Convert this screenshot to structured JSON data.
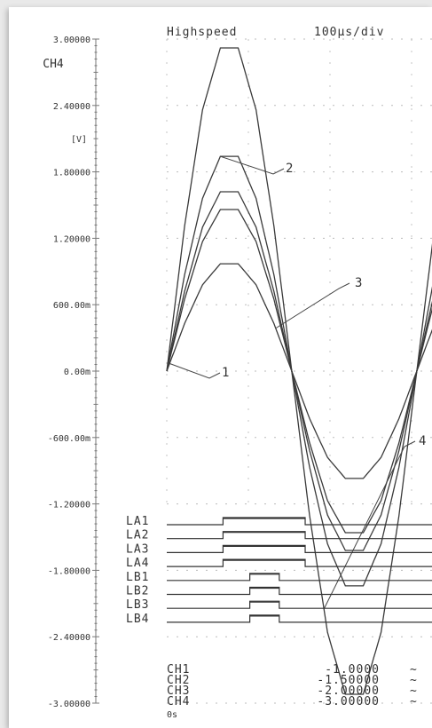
{
  "chart_data": {
    "type": "line",
    "title": "Highspeed",
    "timebase": "100μs/div",
    "ylabel": "CH4",
    "yunit": "[V]",
    "ylim": [
      -3.0,
      3.0
    ],
    "y_ticks": [
      {
        "value": 3.0,
        "label": "3.00000"
      },
      {
        "value": 2.4,
        "label": "2.40000"
      },
      {
        "value": 1.8,
        "label": "1.80000"
      },
      {
        "value": 1.2,
        "label": "1.20000"
      },
      {
        "value": 0.6,
        "label": "600.00m"
      },
      {
        "value": 0.0,
        "label": "0.00m"
      },
      {
        "value": -0.6,
        "label": "-600.00m"
      },
      {
        "value": -1.2,
        "label": "-1.20000"
      },
      {
        "value": -1.8,
        "label": "-1.80000"
      },
      {
        "value": -2.4,
        "label": "-2.40000"
      },
      {
        "value": -3.0,
        "label": "-3.00000"
      }
    ],
    "x_unit": "μs",
    "xlim": [
      0,
      300
    ],
    "x_start_label": "0s",
    "series": [
      {
        "tag": "1",
        "values": [
          [
            0,
            0
          ],
          [
            20,
            0.72
          ],
          [
            40,
            1.3
          ],
          [
            60,
            1.62
          ],
          [
            80,
            1.62
          ],
          [
            100,
            1.3
          ],
          [
            120,
            0.72
          ],
          [
            140,
            0
          ],
          [
            160,
            -0.72
          ],
          [
            180,
            -1.3
          ],
          [
            200,
            -1.62
          ],
          [
            220,
            -1.62
          ],
          [
            240,
            -1.3
          ],
          [
            260,
            -0.72
          ],
          [
            280,
            0
          ],
          [
            300,
            0.72
          ]
        ]
      },
      {
        "tag": "2",
        "values": [
          [
            0,
            0
          ],
          [
            20,
            0.87
          ],
          [
            40,
            1.56
          ],
          [
            60,
            1.94
          ],
          [
            80,
            1.94
          ],
          [
            100,
            1.56
          ],
          [
            120,
            0.87
          ],
          [
            140,
            0
          ],
          [
            160,
            -0.87
          ],
          [
            180,
            -1.56
          ],
          [
            200,
            -1.94
          ],
          [
            220,
            -1.94
          ],
          [
            240,
            -1.56
          ],
          [
            260,
            -0.87
          ],
          [
            280,
            0
          ],
          [
            300,
            0.87
          ]
        ]
      },
      {
        "tag": "",
        "values": [
          [
            0,
            0
          ],
          [
            20,
            0.65
          ],
          [
            40,
            1.17
          ],
          [
            60,
            1.46
          ],
          [
            80,
            1.46
          ],
          [
            100,
            1.17
          ],
          [
            120,
            0.65
          ],
          [
            140,
            0
          ],
          [
            160,
            -0.65
          ],
          [
            180,
            -1.17
          ],
          [
            200,
            -1.46
          ],
          [
            220,
            -1.46
          ],
          [
            240,
            -1.17
          ],
          [
            260,
            -0.65
          ],
          [
            280,
            0
          ],
          [
            300,
            0.65
          ]
        ]
      },
      {
        "tag": "3",
        "values": [
          [
            0,
            0
          ],
          [
            20,
            0.43
          ],
          [
            40,
            0.78
          ],
          [
            60,
            0.97
          ],
          [
            80,
            0.97
          ],
          [
            100,
            0.78
          ],
          [
            120,
            0.43
          ],
          [
            140,
            0
          ],
          [
            160,
            -0.43
          ],
          [
            180,
            -0.78
          ],
          [
            200,
            -0.97
          ],
          [
            220,
            -0.97
          ],
          [
            240,
            -0.78
          ],
          [
            260,
            -0.43
          ],
          [
            280,
            0
          ],
          [
            300,
            0.43
          ]
        ]
      },
      {
        "tag": "4",
        "values": [
          [
            0,
            0
          ],
          [
            20,
            1.31
          ],
          [
            40,
            2.36
          ],
          [
            60,
            2.92
          ],
          [
            80,
            2.92
          ],
          [
            100,
            2.36
          ],
          [
            120,
            1.31
          ],
          [
            140,
            0
          ],
          [
            160,
            -1.31
          ],
          [
            180,
            -2.36
          ],
          [
            200,
            -2.92
          ],
          [
            220,
            -2.92
          ],
          [
            240,
            -2.36
          ],
          [
            260,
            -1.31
          ],
          [
            280,
            0
          ],
          [
            300,
            1.31
          ]
        ]
      }
    ],
    "logic_channels": [
      {
        "label": "LA1",
        "pulse": [
          63,
          155
        ]
      },
      {
        "label": "LA2",
        "pulse": [
          63,
          155
        ]
      },
      {
        "label": "LA3",
        "pulse": [
          63,
          155
        ]
      },
      {
        "label": "LA4",
        "pulse": [
          63,
          155
        ]
      },
      {
        "label": "LB1",
        "pulse": [
          93,
          126
        ]
      },
      {
        "label": "LB2",
        "pulse": [
          93,
          126
        ]
      },
      {
        "label": "LB3",
        "pulse": [
          93,
          126
        ]
      },
      {
        "label": "LB4",
        "pulse": [
          93,
          126
        ]
      }
    ],
    "readouts": [
      {
        "channel": "CH1",
        "value": "-1.0000"
      },
      {
        "channel": "CH2",
        "value": "-1.50000"
      },
      {
        "channel": "CH3",
        "value": "-2.00000"
      },
      {
        "channel": "CH4",
        "value": "-3.00000"
      }
    ],
    "grid": true
  }
}
